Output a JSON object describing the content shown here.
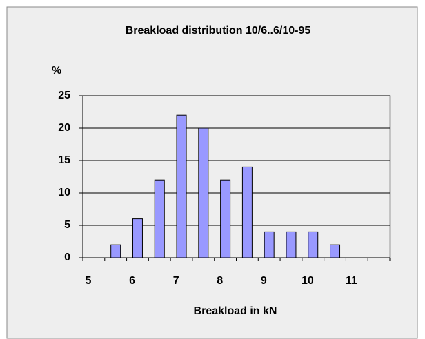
{
  "chart_data": {
    "type": "bar",
    "title": "Breakload distribution 10/6..6/10-95",
    "y_label": "%",
    "x_label": "Breakload in kN",
    "categories": [
      "5",
      null,
      "6",
      null,
      "7",
      null,
      "8",
      null,
      "9",
      null,
      "10",
      null,
      "11",
      null
    ],
    "values": [
      null,
      2,
      6,
      12,
      22,
      20,
      12,
      14,
      4,
      4,
      4,
      2,
      null,
      null
    ],
    "color": "#9999ff",
    "ylim": [
      0,
      25
    ],
    "yticks": [
      0,
      5,
      10,
      15,
      20,
      25
    ],
    "grid": true
  }
}
